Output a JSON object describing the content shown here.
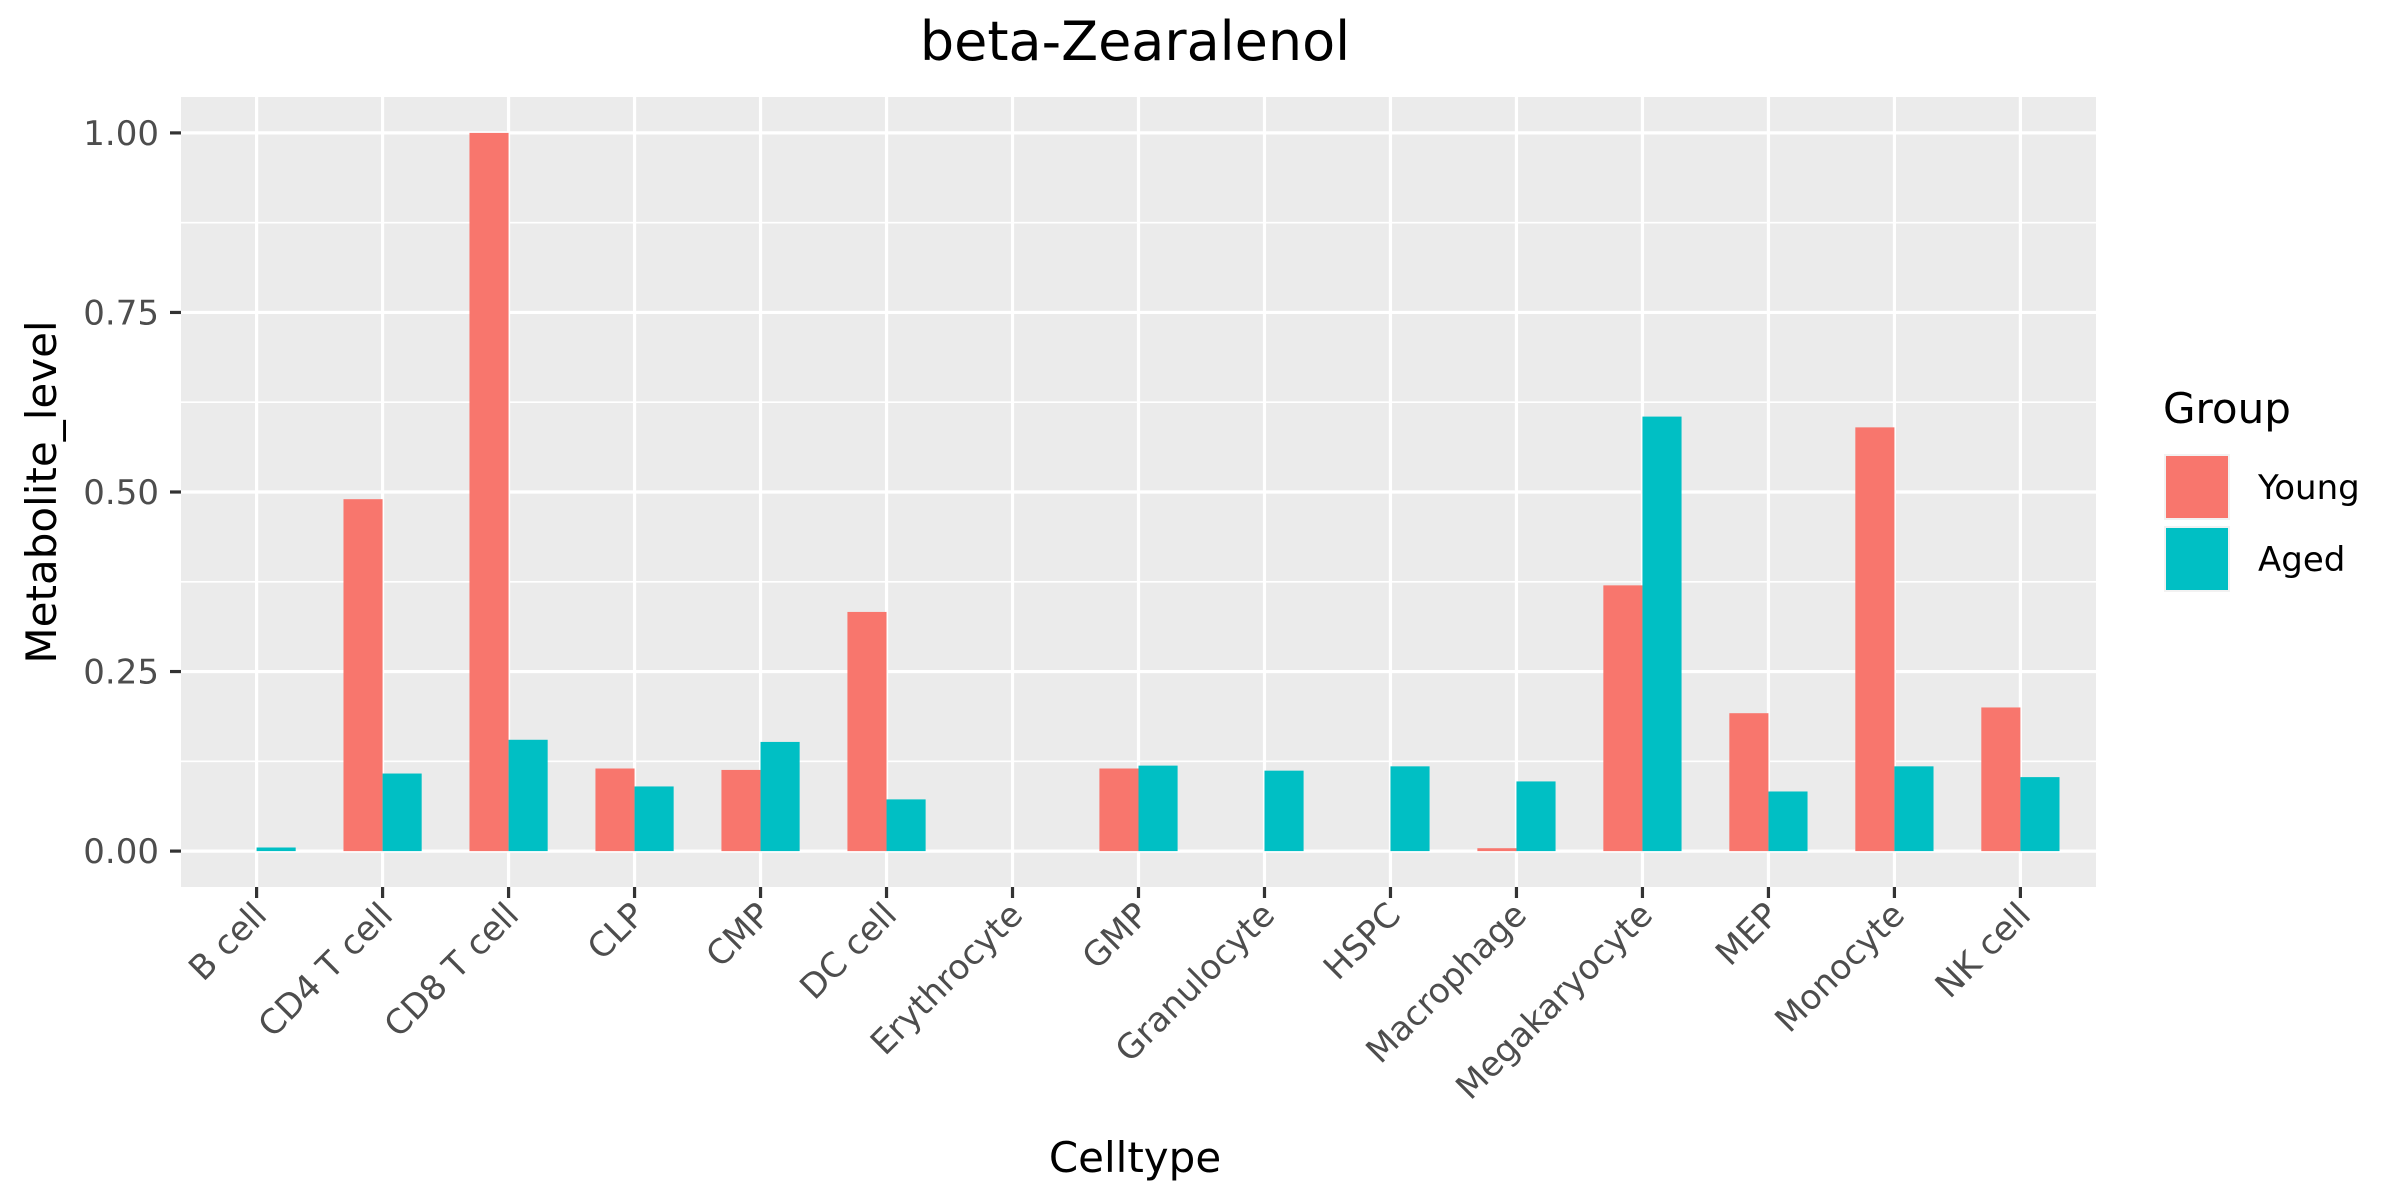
{
  "chart_data": {
    "type": "bar",
    "title": "beta-Zearalenol",
    "xlabel": "Celltype",
    "ylabel": "Metabolite_level",
    "ylim": [
      -0.05,
      1.05
    ],
    "yticks": [
      0,
      0.25,
      0.5,
      0.75,
      1.0
    ],
    "ytick_labels": [
      "0.00",
      "0.25",
      "0.50",
      "0.75",
      "1.00"
    ],
    "grid": true,
    "legend_title": "Group",
    "legend_position": "right",
    "categories": [
      "B cell",
      "CD4 T cell",
      "CD8 T cell",
      "CLP",
      "CMP",
      "DC cell",
      "Erythrocyte",
      "GMP",
      "Granulocyte",
      "HSPC",
      "Macrophage",
      "Megakaryocyte",
      "MEP",
      "Monocyte",
      "NK cell"
    ],
    "series": [
      {
        "name": "Young",
        "color": "#F8766D",
        "values": [
          0,
          0.49,
          1.0,
          0.115,
          0.113,
          0.333,
          0,
          0.115,
          0,
          0,
          0.004,
          0.37,
          0.192,
          0.59,
          0.2
        ]
      },
      {
        "name": "Aged",
        "color": "#00BFC4",
        "values": [
          0.005,
          0.108,
          0.155,
          0.09,
          0.152,
          0.072,
          0,
          0.119,
          0.112,
          0.118,
          0.097,
          0.605,
          0.083,
          0.118,
          0.103
        ]
      }
    ]
  }
}
